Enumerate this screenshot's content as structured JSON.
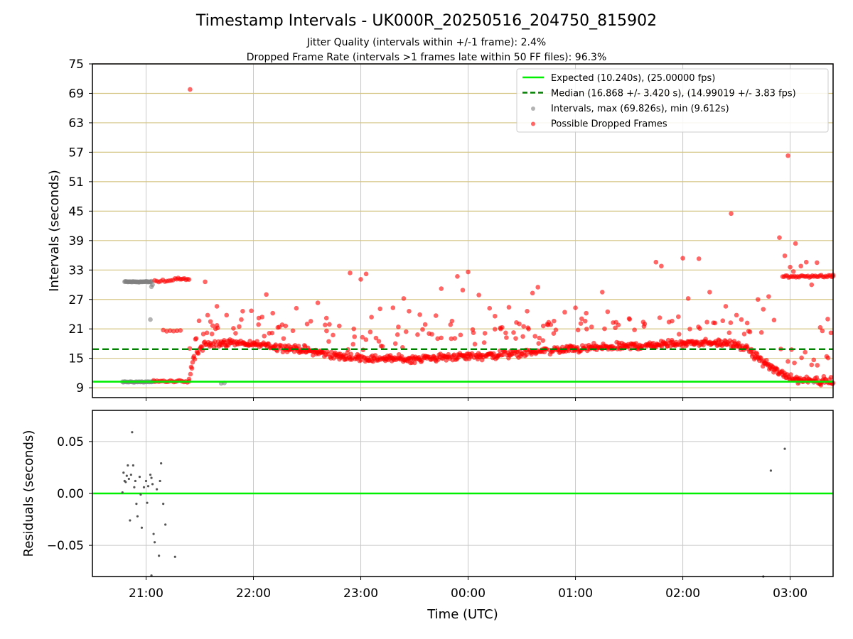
{
  "title": "Timestamp Intervals - UK000R_20250516_204750_815902",
  "subtitle_line1": "Jitter Quality (intervals within +/-1 frame): 2.4%",
  "subtitle_line2": "Dropped Frame Rate (intervals >1 frames late within 50 FF files): 96.3%",
  "colors": {
    "expected": "#00ee00",
    "median": "#008000",
    "intervals": "#808080",
    "dropped": "#ff0000",
    "tick_grid": "#c8c8c8",
    "frame_grid": "#d4c482"
  },
  "chart_data": [
    {
      "type": "scatter",
      "panel": "top",
      "ylabel": "Intervals (seconds)",
      "xlabel": "",
      "xlim_hours": [
        -3.5,
        3.4
      ],
      "ylim": [
        7,
        75
      ],
      "yticks": [
        9,
        15,
        21,
        27,
        33,
        39,
        45,
        51,
        57,
        63,
        69,
        75
      ],
      "xticks_hours": [
        -3,
        -2,
        -1,
        0,
        1,
        2,
        3
      ],
      "x_note": "x values are hours relative to 00:00 UTC",
      "expected_line": {
        "y": 10.24,
        "label": "Expected (10.240s), (25.00000 fps)"
      },
      "median_line": {
        "y": 16.868,
        "label": "Median (16.868 +/- 3.420 s), (14.99019 +/- 3.83 fps)"
      },
      "legend": [
        "Expected (10.240s), (25.00000 fps)",
        "Median (16.868 +/- 3.420 s), (14.99019 +/- 3.83 fps)",
        "Intervals, max (69.826s), min (9.612s)",
        "Possible Dropped Frames"
      ],
      "legend_position": "top-right",
      "series": [
        {
          "name": "Intervals, max (69.826s), min (9.612s)",
          "clusters": [
            {
              "x_range": [
                -3.2,
                -2.95
              ],
              "y": 30.6,
              "count": 40
            },
            {
              "x_range": [
                -3.22,
                -2.93
              ],
              "y": 10.2,
              "count": 36
            }
          ],
          "points": [
            [
              -2.96,
              22.9
            ],
            [
              -2.95,
              29.6
            ],
            [
              -2.94,
              30.0
            ],
            [
              -2.27,
              10.0
            ],
            [
              -2.3,
              9.9
            ],
            [
              3.08,
              10.1
            ],
            [
              3.22,
              10.1
            ]
          ]
        },
        {
          "name": "Possible Dropped Frames",
          "trend": [
            [
              -2.6,
              10.5
            ],
            [
              -2.55,
              15.5
            ],
            [
              -2.45,
              17.8
            ],
            [
              -2.2,
              18.2
            ],
            [
              -1.9,
              17.6
            ],
            [
              -1.5,
              16.7
            ],
            [
              -1.2,
              15.4
            ],
            [
              -0.9,
              14.9
            ],
            [
              -0.5,
              14.9
            ],
            [
              -0.2,
              15.3
            ],
            [
              0.1,
              15.5
            ],
            [
              0.5,
              16.0
            ],
            [
              0.8,
              16.6
            ],
            [
              1.2,
              17.2
            ],
            [
              1.6,
              17.6
            ],
            [
              1.9,
              18.0
            ],
            [
              2.2,
              18.2
            ],
            [
              2.45,
              18.0
            ],
            [
              2.6,
              16.8
            ],
            [
              2.75,
              14.3
            ],
            [
              2.9,
              12.0
            ],
            [
              3.05,
              10.8
            ],
            [
              3.4,
              10.3
            ]
          ],
          "trend_count": 900,
          "clusters": [
            {
              "x_range": [
                -2.93,
                -2.6
              ],
              "y": 10.3,
              "count": 22
            },
            {
              "x_range": [
                -2.92,
                -2.75
              ],
              "y": 30.8,
              "count": 10
            },
            {
              "x_range": [
                -2.84,
                -2.68
              ],
              "y": 20.6,
              "count": 6
            },
            {
              "x_range": [
                -2.73,
                -2.6
              ],
              "y": 31.2,
              "count": 10
            },
            {
              "x_range": [
                2.93,
                3.4
              ],
              "y": 31.7,
              "count": 35
            }
          ],
          "points": [
            [
              -2.59,
              69.8
            ],
            [
              -2.45,
              30.6
            ],
            [
              -2.34,
              25.6
            ],
            [
              -2.4,
              22.5
            ],
            [
              -2.25,
              23.8
            ],
            [
              -2.1,
              24.6
            ],
            [
              -1.95,
              23.2
            ],
            [
              -1.88,
              28.0
            ],
            [
              -1.82,
              24.2
            ],
            [
              -1.7,
              21.6
            ],
            [
              -1.6,
              25.2
            ],
            [
              -1.5,
              22.0
            ],
            [
              -1.4,
              26.3
            ],
            [
              -1.32,
              23.2
            ],
            [
              -1.2,
              21.6
            ],
            [
              -1.1,
              32.4
            ],
            [
              -1.0,
              31.1
            ],
            [
              -0.95,
              32.2
            ],
            [
              -0.9,
              23.4
            ],
            [
              -0.82,
              25.1
            ],
            [
              -0.7,
              25.3
            ],
            [
              -0.65,
              21.4
            ],
            [
              -0.6,
              27.2
            ],
            [
              -0.55,
              24.6
            ],
            [
              -0.45,
              23.9
            ],
            [
              -0.4,
              21.9
            ],
            [
              -0.3,
              23.7
            ],
            [
              -0.25,
              29.2
            ],
            [
              -0.15,
              22.6
            ],
            [
              -0.1,
              31.7
            ],
            [
              -0.05,
              28.9
            ],
            [
              0.0,
              32.6
            ],
            [
              0.1,
              27.9
            ],
            [
              0.2,
              25.2
            ],
            [
              0.25,
              23.6
            ],
            [
              0.3,
              21.2
            ],
            [
              0.38,
              25.4
            ],
            [
              0.45,
              22.3
            ],
            [
              0.55,
              24.6
            ],
            [
              0.6,
              28.3
            ],
            [
              0.65,
              29.5
            ],
            [
              0.7,
              21.6
            ],
            [
              0.8,
              22.6
            ],
            [
              0.9,
              24.4
            ],
            [
              1.0,
              25.3
            ],
            [
              1.05,
              22.1
            ],
            [
              1.1,
              24.2
            ],
            [
              1.15,
              21.4
            ],
            [
              1.25,
              28.5
            ],
            [
              1.3,
              24.5
            ],
            [
              1.4,
              21.8
            ],
            [
              1.5,
              23.1
            ],
            [
              1.55,
              20.8
            ],
            [
              1.75,
              34.6
            ],
            [
              1.8,
              33.8
            ],
            [
              1.9,
              22.6
            ],
            [
              2.0,
              35.4
            ],
            [
              2.05,
              27.2
            ],
            [
              2.15,
              35.3
            ],
            [
              2.25,
              28.5
            ],
            [
              2.3,
              22.2
            ],
            [
              2.4,
              25.6
            ],
            [
              2.45,
              44.5
            ],
            [
              2.5,
              23.8
            ],
            [
              2.6,
              22.2
            ],
            [
              2.7,
              27.0
            ],
            [
              2.75,
              25.0
            ],
            [
              2.8,
              27.6
            ],
            [
              2.85,
              22.8
            ],
            [
              2.9,
              39.6
            ],
            [
              2.95,
              35.9
            ],
            [
              2.98,
              56.3
            ],
            [
              3.0,
              33.6
            ],
            [
              3.03,
              32.7
            ],
            [
              3.05,
              38.4
            ],
            [
              3.1,
              33.8
            ],
            [
              3.15,
              34.6
            ],
            [
              3.2,
              30.0
            ],
            [
              3.25,
              34.5
            ],
            [
              3.28,
              21.3
            ],
            [
              3.3,
              20.6
            ],
            [
              3.35,
              23.0
            ],
            [
              3.38,
              20.2
            ],
            [
              3.4,
              32.0
            ]
          ]
        }
      ]
    },
    {
      "type": "scatter",
      "panel": "bottom",
      "ylabel": "Residuals (seconds)",
      "xlabel": "Time (UTC)",
      "xlim_hours": [
        -3.5,
        3.4
      ],
      "ylim": [
        -0.08,
        0.08
      ],
      "yticks": [
        -0.05,
        0.0,
        0.05
      ],
      "ytick_labels": [
        "−0.05",
        "0.00",
        "0.05"
      ],
      "xticks_hours": [
        -3,
        -2,
        -1,
        0,
        1,
        2,
        3
      ],
      "xtick_labels": [
        "21:00",
        "22:00",
        "23:00",
        "00:00",
        "01:00",
        "02:00",
        "03:00"
      ],
      "zero_line": 0.0,
      "points": [
        [
          -3.22,
          0.001
        ],
        [
          -3.21,
          0.02
        ],
        [
          -3.2,
          0.012
        ],
        [
          -3.19,
          0.011
        ],
        [
          -3.18,
          0.017
        ],
        [
          -3.17,
          0.027
        ],
        [
          -3.16,
          0.014
        ],
        [
          -3.15,
          -0.026
        ],
        [
          -3.14,
          0.018
        ],
        [
          -3.13,
          0.059
        ],
        [
          -3.12,
          0.027
        ],
        [
          -3.11,
          0.006
        ],
        [
          -3.1,
          0.012
        ],
        [
          -3.09,
          -0.01
        ],
        [
          -3.08,
          -0.022
        ],
        [
          -3.06,
          0.016
        ],
        [
          -3.05,
          -0.001
        ],
        [
          -3.04,
          -0.033
        ],
        [
          -3.02,
          0.006
        ],
        [
          -3.0,
          0.012
        ],
        [
          -2.99,
          -0.009
        ],
        [
          -2.98,
          0.007
        ],
        [
          -2.96,
          0.018
        ],
        [
          -2.95,
          0.015
        ],
        [
          -2.94,
          0.009
        ],
        [
          -2.93,
          -0.039
        ],
        [
          -2.92,
          -0.047
        ],
        [
          -2.9,
          0.004
        ],
        [
          -2.88,
          -0.06
        ],
        [
          -2.86,
          0.029
        ],
        [
          -2.84,
          -0.01
        ],
        [
          -2.82,
          -0.03
        ],
        [
          -2.95,
          -0.079
        ],
        [
          -2.73,
          -0.061
        ],
        [
          -2.87,
          0.012
        ],
        [
          2.75,
          -0.08
        ],
        [
          2.82,
          0.022
        ],
        [
          2.95,
          0.043
        ]
      ]
    }
  ]
}
